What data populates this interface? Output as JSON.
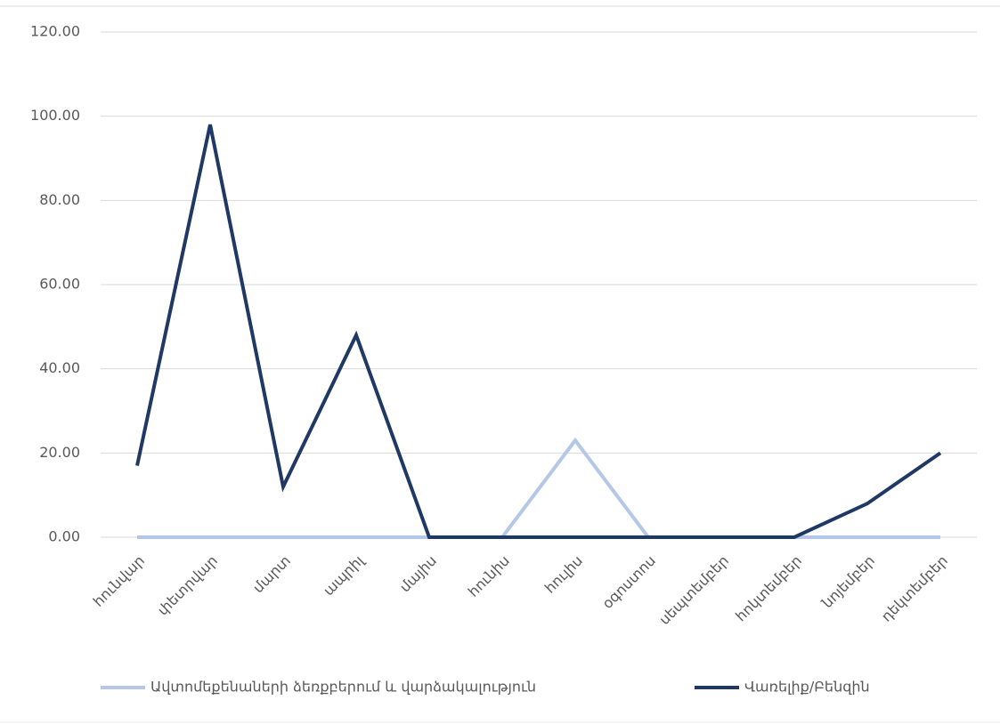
{
  "chart_data": {
    "type": "line",
    "categories": [
      "հունվար",
      "փետրվար",
      "մարտ",
      "ապրիլ",
      "մայիս",
      "հունիս",
      "հուլիս",
      "օգոստոս",
      "սեպտեմբեր",
      "հոկտեմբեր",
      "նոյեմբեր",
      "դեկտեմբեր"
    ],
    "series": [
      {
        "name": "Ավտոմեքենաների ձեռքբերում և վարձակալություն",
        "color": "#b4c7e7",
        "values": [
          0,
          0,
          0,
          0,
          0,
          0,
          23,
          0,
          0,
          0,
          0,
          0
        ]
      },
      {
        "name": "Վառելիք/Բենզին",
        "color": "#203864",
        "values": [
          17,
          98,
          12,
          48,
          0,
          0,
          0,
          0,
          0,
          0,
          8,
          20
        ]
      }
    ],
    "ylim": [
      0,
      120
    ],
    "yticks": [
      {
        "value": 0,
        "label": "0.00"
      },
      {
        "value": 20,
        "label": "20.00"
      },
      {
        "value": 40,
        "label": "40.00"
      },
      {
        "value": 60,
        "label": "60.00"
      },
      {
        "value": 80,
        "label": "80.00"
      },
      {
        "value": 100,
        "label": "100.00"
      },
      {
        "value": 120,
        "label": "120.00"
      }
    ],
    "grid": true,
    "legend": "bottom"
  }
}
